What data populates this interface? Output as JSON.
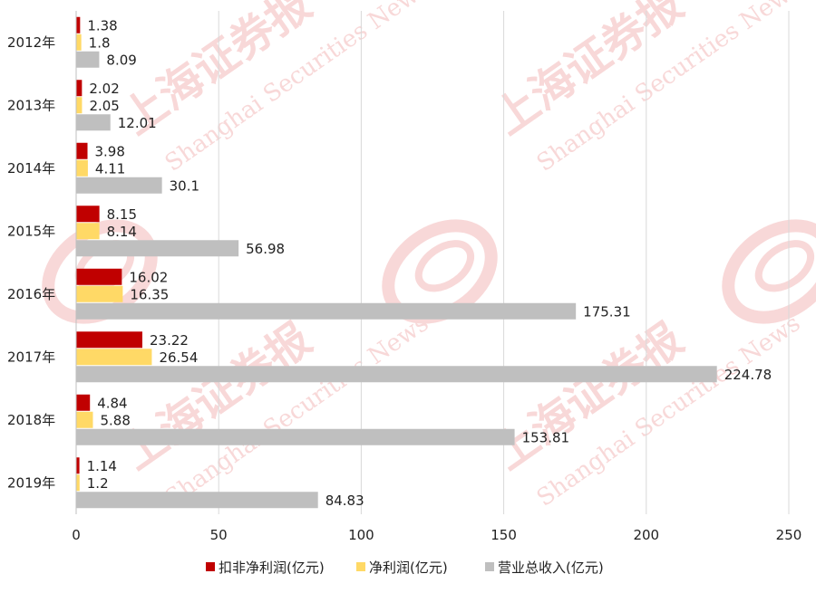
{
  "chart_data": {
    "type": "bar",
    "orientation": "horizontal",
    "categories": [
      "2012年",
      "2013年",
      "2014年",
      "2015年",
      "2016年",
      "2017年",
      "2018年",
      "2019年"
    ],
    "series": [
      {
        "name": "扣非净利润(亿元)",
        "color": "#c00000",
        "values": [
          1.38,
          2.02,
          3.98,
          8.15,
          16.02,
          23.22,
          4.84,
          1.14
        ]
      },
      {
        "name": "净利润(亿元)",
        "color": "#ffd966",
        "values": [
          1.8,
          2.05,
          4.11,
          8.14,
          16.35,
          26.54,
          5.88,
          1.2
        ]
      },
      {
        "name": "营业总收入(亿元)",
        "color": "#bfbfbf",
        "values": [
          8.09,
          12.01,
          30.1,
          56.98,
          175.31,
          224.78,
          153.81,
          84.83
        ]
      }
    ],
    "data_labels": [
      [
        "1.38",
        "2.02",
        "3.98",
        "8.15",
        "16.02",
        "23.22",
        "4.84",
        "1.14"
      ],
      [
        "1.8",
        "2.05",
        "4.11",
        "8.14",
        "16.35",
        "26.54",
        "5.88",
        "1.2"
      ],
      [
        "8.09",
        "12.01",
        "30.1",
        "56.98",
        "175.31",
        "224.78",
        "153.81",
        "84.83"
      ]
    ],
    "xlim": [
      0,
      250
    ],
    "x_ticks": [
      "0",
      "50",
      "100",
      "150",
      "200",
      "250"
    ],
    "grid": "vertical",
    "legend_position": "bottom"
  },
  "watermark": {
    "brand": "上海证券报",
    "latin": "Shanghai Securities News",
    "color": "#f2b8b8"
  }
}
